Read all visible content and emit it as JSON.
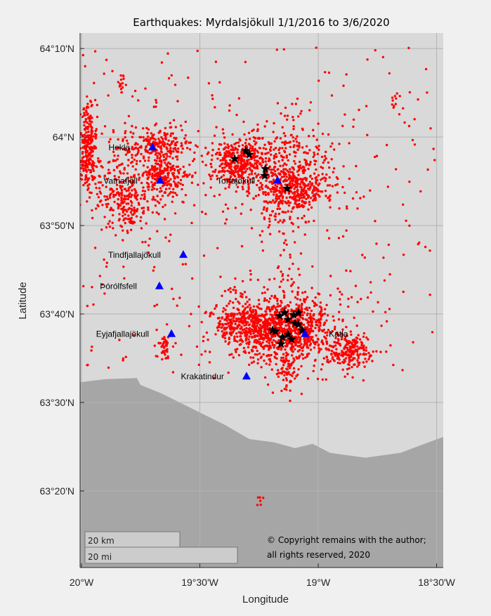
{
  "title": "Earthquakes: Myrdalsjökull 1/1/2016 to 3/6/2020",
  "xlabel": "Longitude",
  "ylabel": "Latitude",
  "xlim": [
    -20.006,
    -18.472
  ],
  "ylim": [
    63.189,
    64.196
  ],
  "xticks": [
    {
      "value": -20,
      "label": "20°W"
    },
    {
      "value": -19.5,
      "label": "19°30'W"
    },
    {
      "value": -19,
      "label": "19°W"
    },
    {
      "value": -18.5,
      "label": "18°30'W"
    }
  ],
  "yticks": [
    {
      "value": 64.1667,
      "label": "64°10'N"
    },
    {
      "value": 64,
      "label": "64°N"
    },
    {
      "value": 63.8333,
      "label": "63°50'N"
    },
    {
      "value": 63.6667,
      "label": "63°40'N"
    },
    {
      "value": 63.5,
      "label": "63°30'N"
    },
    {
      "value": 63.3333,
      "label": "63°20'N"
    }
  ],
  "colors": {
    "land": "#d9d9d9",
    "sea": "#a6a6a6",
    "quake": "#ff0000",
    "volcano": "#0000ff",
    "star": "#000000",
    "grid": "#b3b3b3"
  },
  "coastline": [
    [
      -20.006,
      63.538
    ],
    [
      -19.899,
      63.544
    ],
    [
      -19.766,
      63.546
    ],
    [
      -19.751,
      63.533
    ],
    [
      -19.662,
      63.517
    ],
    [
      -19.513,
      63.484
    ],
    [
      -19.395,
      63.458
    ],
    [
      -19.291,
      63.431
    ],
    [
      -19.187,
      63.425
    ],
    [
      -19.098,
      63.414
    ],
    [
      -19.024,
      63.422
    ],
    [
      -18.95,
      63.405
    ],
    [
      -18.801,
      63.396
    ],
    [
      -18.653,
      63.405
    ],
    [
      -18.534,
      63.425
    ],
    [
      -18.472,
      63.435
    ]
  ],
  "volcanoes": [
    {
      "name": "Hekla",
      "lon": -19.7,
      "lat": 63.9815,
      "label_side": "left"
    },
    {
      "name": "Vatnafjöll",
      "lon": -19.668,
      "lat": 63.919,
      "label_side": "left"
    },
    {
      "name": "Torfajökull",
      "lon": -19.172,
      "lat": 63.919,
      "label_side": "left"
    },
    {
      "name": "Tindfjallajökull",
      "lon": -19.57,
      "lat": 63.779,
      "label_side": "left"
    },
    {
      "name": "Þórólfsfell",
      "lon": -19.671,
      "lat": 63.72,
      "label_side": "left"
    },
    {
      "name": "Eyjafjallajökull",
      "lon": -19.62,
      "lat": 63.63,
      "label_side": "left"
    },
    {
      "name": "Krakatindur",
      "lon": -19.303,
      "lat": 63.55,
      "label_side": "left"
    },
    {
      "name": "Katla",
      "lon": -19.056,
      "lat": 63.63,
      "label_side": "right"
    }
  ],
  "large_quakes": [
    [
      -19.353,
      63.959
    ],
    [
      -19.306,
      63.974
    ],
    [
      -19.291,
      63.967
    ],
    [
      -19.223,
      63.94
    ],
    [
      -19.226,
      63.927
    ],
    [
      -19.131,
      63.903
    ],
    [
      -19.163,
      63.663
    ],
    [
      -19.142,
      63.669
    ],
    [
      -19.128,
      63.656
    ],
    [
      -19.104,
      63.665
    ],
    [
      -19.083,
      63.669
    ],
    [
      -19.098,
      63.649
    ],
    [
      -19.181,
      63.634
    ],
    [
      -19.151,
      63.623
    ],
    [
      -19.128,
      63.628
    ],
    [
      -19.113,
      63.619
    ],
    [
      -19.083,
      63.647
    ],
    [
      -19.068,
      63.636
    ],
    [
      -19.193,
      63.636
    ],
    [
      -19.157,
      63.61
    ]
  ],
  "quake_clusters": [
    {
      "lon": -19.976,
      "lat": 63.98,
      "slon": 0.018,
      "slat": 0.04,
      "n": 250
    },
    {
      "lon": -19.677,
      "lat": 63.987,
      "slon": 0.06,
      "slat": 0.013,
      "n": 150
    },
    {
      "lon": -19.647,
      "lat": 63.927,
      "slon": 0.045,
      "slat": 0.02,
      "n": 200
    },
    {
      "lon": -19.825,
      "lat": 63.901,
      "slon": 0.075,
      "slat": 0.033,
      "n": 150
    },
    {
      "lon": -19.81,
      "lat": 63.861,
      "slon": 0.045,
      "slat": 0.026,
      "n": 80
    },
    {
      "lon": -19.78,
      "lat": 63.94,
      "slon": 0.15,
      "slat": 0.066,
      "n": 200
    },
    {
      "lon": -19.335,
      "lat": 63.954,
      "slon": 0.06,
      "slat": 0.02,
      "n": 300
    },
    {
      "lon": -19.098,
      "lat": 63.907,
      "slon": 0.075,
      "slat": 0.026,
      "n": 400
    },
    {
      "lon": -19.187,
      "lat": 63.954,
      "slon": 0.134,
      "slat": 0.046,
      "n": 300
    },
    {
      "lon": -19.157,
      "lat": 63.861,
      "slon": 0.045,
      "slat": 0.04,
      "n": 60
    },
    {
      "lon": -19.32,
      "lat": 63.649,
      "slon": 0.06,
      "slat": 0.02,
      "n": 300
    },
    {
      "lon": -19.128,
      "lat": 63.636,
      "slon": 0.09,
      "slat": 0.026,
      "n": 700
    },
    {
      "lon": -19.157,
      "lat": 63.649,
      "slon": 0.18,
      "slat": 0.053,
      "n": 300
    },
    {
      "lon": -18.875,
      "lat": 63.597,
      "slon": 0.045,
      "slat": 0.016,
      "n": 200
    },
    {
      "lon": -19.128,
      "lat": 63.557,
      "slon": 0.024,
      "slat": 0.02,
      "n": 60
    },
    {
      "lon": -19.647,
      "lat": 63.603,
      "slon": 0.018,
      "slat": 0.013,
      "n": 40
    },
    {
      "lon": -19.831,
      "lat": 64.102,
      "slon": 0.009,
      "slat": 0.008,
      "n": 15
    },
    {
      "lon": -18.677,
      "lat": 64.07,
      "slon": 0.01,
      "slat": 0.01,
      "n": 10
    },
    {
      "lon": -19.246,
      "lat": 63.312,
      "slon": 0.01,
      "slat": 0.008,
      "n": 6
    }
  ],
  "background_quakes": {
    "lon": [
      -20.0,
      -18.5
    ],
    "lat": [
      63.55,
      64.17
    ],
    "n": 250
  },
  "scale_bar": {
    "km_label": "20 km",
    "mi_label": "20 mi"
  },
  "copyright": {
    "line1": "© Copyright remains with the author;",
    "line2": "all rights reserved, 2020"
  }
}
